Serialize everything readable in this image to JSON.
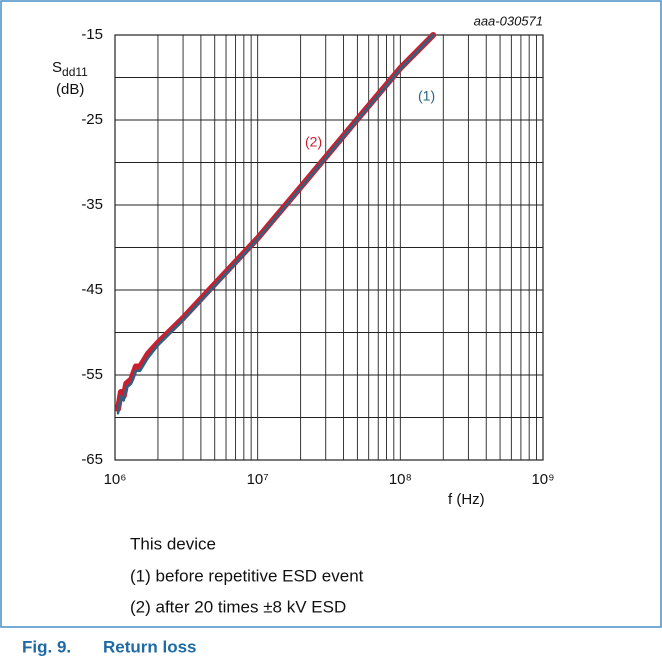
{
  "chart_data": {
    "type": "line",
    "code": "aaa-030571",
    "ylabel": {
      "main": "S",
      "sub": "dd11",
      "unit": "(dB)"
    },
    "xlabel": "f (Hz)",
    "xscale": "log",
    "xlim": [
      1000000,
      1000000000
    ],
    "xticks": [
      {
        "value": 1000000,
        "label": "10⁶"
      },
      {
        "value": 10000000,
        "label": "10⁷"
      },
      {
        "value": 100000000,
        "label": "10⁸"
      },
      {
        "value": 1000000000,
        "label": "10⁹"
      }
    ],
    "ylim": [
      -65,
      -15
    ],
    "yticks": [
      -15,
      -25,
      -35,
      -45,
      -55,
      -65
    ],
    "yminor": [
      -20,
      -30,
      -40,
      -50,
      -60
    ],
    "grid": true,
    "x": [
      1050000,
      1100000,
      1150000,
      1200000,
      1300000,
      1400000,
      1500000,
      1700000,
      2000000,
      3000000,
      5000000,
      10000000,
      20000000,
      50000000,
      100000000,
      170000000
    ],
    "series": [
      {
        "name": "(1) before repetitive ESD event",
        "label": "(1)",
        "color": "#2a6384",
        "values": [
          -59.5,
          -57.5,
          -58,
          -56.5,
          -56,
          -54.5,
          -54.5,
          -53,
          -51.5,
          -48.5,
          -44.5,
          -39,
          -33,
          -25,
          -19,
          -15
        ]
      },
      {
        "name": "(2) after 20 times ±8 kV ESD",
        "label": "(2)",
        "color": "#c8202f",
        "values": [
          -59,
          -57,
          -57.5,
          -56,
          -55.5,
          -54,
          -54,
          -52.5,
          -51.2,
          -48.3,
          -44.3,
          -38.9,
          -32.9,
          -24.9,
          -18.9,
          -15
        ]
      }
    ],
    "legend_title": "This device",
    "caption": {
      "number": "Fig. 9.",
      "title": "Return loss"
    }
  }
}
